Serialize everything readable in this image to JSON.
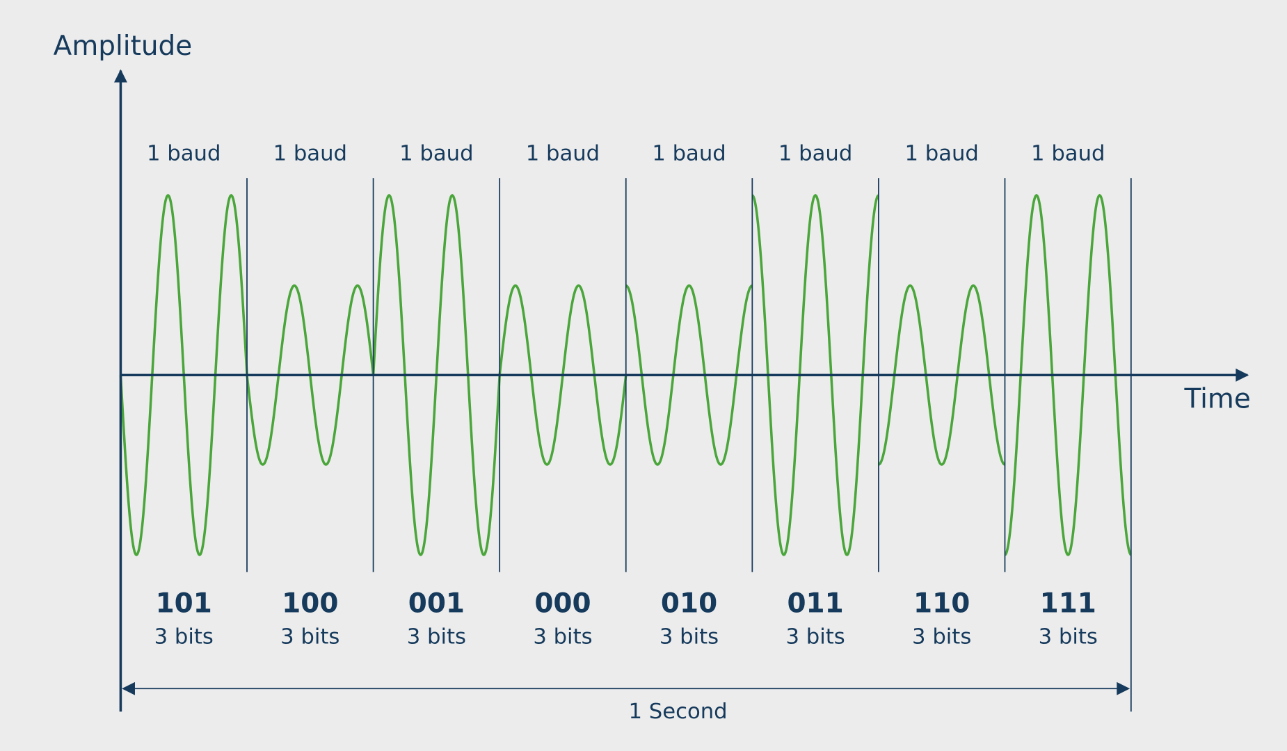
{
  "axes": {
    "y_label": "Amplitude",
    "x_label": "Time"
  },
  "symbols": [
    {
      "baud": "1 baud",
      "bits": "101",
      "bit_count": "3 bits"
    },
    {
      "baud": "1 baud",
      "bits": "100",
      "bit_count": "3 bits"
    },
    {
      "baud": "1 baud",
      "bits": "001",
      "bit_count": "3 bits"
    },
    {
      "baud": "1 baud",
      "bits": "000",
      "bit_count": "3 bits"
    },
    {
      "baud": "1 baud",
      "bits": "010",
      "bit_count": "3 bits"
    },
    {
      "baud": "1 baud",
      "bits": "011",
      "bit_count": "3 bits"
    },
    {
      "baud": "1 baud",
      "bits": "110",
      "bit_count": "3 bits"
    },
    {
      "baud": "1 baud",
      "bits": "111",
      "bit_count": "3 bits"
    }
  ],
  "duration": "1 Second"
}
